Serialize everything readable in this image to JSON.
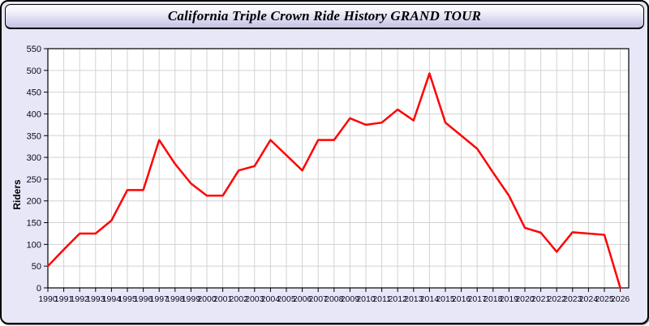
{
  "window": {
    "title": "California Triple Crown Ride History GRAND TOUR"
  },
  "chart_data": {
    "type": "line",
    "title": "California Triple Crown Ride History GRAND TOUR",
    "xlabel": "",
    "ylabel": "Riders",
    "x": [
      1990,
      1991,
      1992,
      1993,
      1994,
      1995,
      1996,
      1997,
      1998,
      1999,
      2000,
      2001,
      2002,
      2003,
      2004,
      2005,
      2006,
      2007,
      2008,
      2009,
      2010,
      2011,
      2012,
      2013,
      2014,
      2015,
      2016,
      2017,
      2018,
      2019,
      2020,
      2021,
      2022,
      2023,
      2024,
      2025,
      2026
    ],
    "series": [
      {
        "name": "Riders",
        "values": [
          50,
          88,
          125,
          125,
          155,
          225,
          225,
          340,
          285,
          240,
          212,
          212,
          270,
          280,
          340,
          305,
          270,
          340,
          340,
          390,
          375,
          380,
          410,
          385,
          493,
          380,
          350,
          320,
          265,
          212,
          138,
          127,
          83,
          128,
          125,
          122,
          0
        ]
      }
    ],
    "ylim": [
      0,
      550
    ],
    "ytick_step": 50,
    "grid": true,
    "legend": "none",
    "colors": {
      "line": "#ff0000",
      "plot_bg": "#ffffff",
      "grid": "#d2d2d2",
      "axis": "#000000",
      "tick_label": "#0a0a1e",
      "frame_bg": "#e7e7f7"
    }
  }
}
